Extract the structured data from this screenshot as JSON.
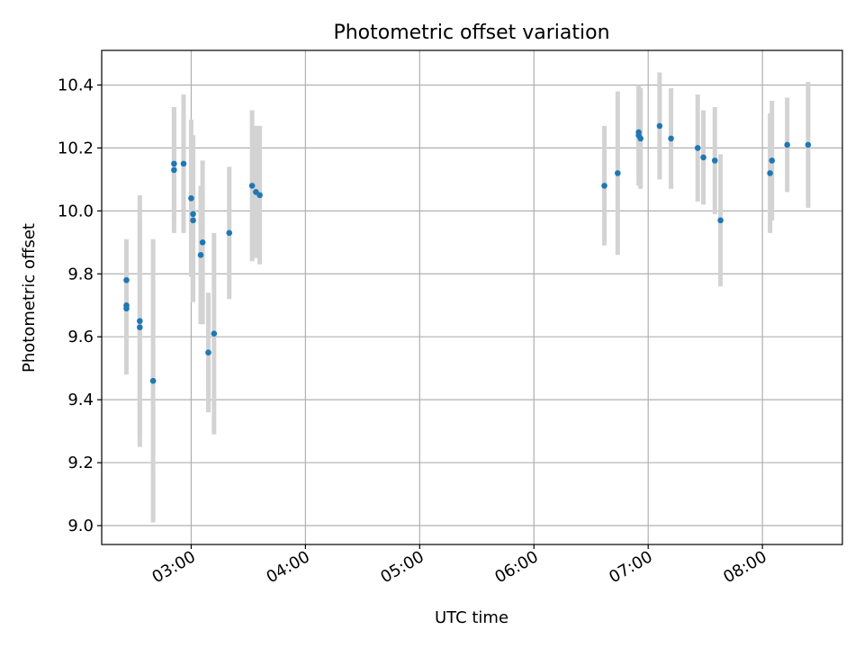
{
  "chart_data": {
    "type": "scatter",
    "title": "Photometric offset variation",
    "xlabel": "UTC time",
    "ylabel": "Photometric offset",
    "x_is_time": true,
    "xlim": [
      "02:13",
      "08:42"
    ],
    "ylim": [
      8.94,
      10.51
    ],
    "x_ticks": [
      "03:00",
      "04:00",
      "05:00",
      "06:00",
      "07:00",
      "08:00"
    ],
    "y_ticks": [
      "9.0",
      "9.2",
      "9.4",
      "9.6",
      "9.8",
      "10.0",
      "10.2",
      "10.4"
    ],
    "grid": true,
    "legend": "none",
    "point_color": "#1f77b4",
    "errorbar_color": "#d3d3d3",
    "points": [
      {
        "x": "02:26",
        "y": 9.78,
        "err": 0.13
      },
      {
        "x": "02:26",
        "y": 9.7,
        "err": 0.2
      },
      {
        "x": "02:26",
        "y": 9.69,
        "err": 0.21
      },
      {
        "x": "02:33",
        "y": 9.65,
        "err": 0.4
      },
      {
        "x": "02:33",
        "y": 9.63,
        "err": 0.35
      },
      {
        "x": "02:40",
        "y": 9.46,
        "err": 0.45
      },
      {
        "x": "02:51",
        "y": 10.13,
        "err": 0.2
      },
      {
        "x": "02:51",
        "y": 10.15,
        "err": 0.18
      },
      {
        "x": "02:56",
        "y": 10.15,
        "err": 0.22
      },
      {
        "x": "03:00",
        "y": 10.04,
        "err": 0.25
      },
      {
        "x": "03:01",
        "y": 9.99,
        "err": 0.25
      },
      {
        "x": "03:01",
        "y": 9.97,
        "err": 0.26
      },
      {
        "x": "03:05",
        "y": 9.86,
        "err": 0.22
      },
      {
        "x": "03:06",
        "y": 9.9,
        "err": 0.26
      },
      {
        "x": "03:09",
        "y": 9.55,
        "err": 0.19
      },
      {
        "x": "03:12",
        "y": 9.61,
        "err": 0.32
      },
      {
        "x": "03:20",
        "y": 9.93,
        "err": 0.21
      },
      {
        "x": "03:32",
        "y": 10.08,
        "err": 0.24
      },
      {
        "x": "03:34",
        "y": 10.06,
        "err": 0.21
      },
      {
        "x": "03:36",
        "y": 10.05,
        "err": 0.22
      },
      {
        "x": "06:37",
        "y": 10.08,
        "err": 0.19
      },
      {
        "x": "06:44",
        "y": 10.12,
        "err": 0.26
      },
      {
        "x": "06:55",
        "y": 10.25,
        "err": 0.15
      },
      {
        "x": "06:55",
        "y": 10.24,
        "err": 0.16
      },
      {
        "x": "06:56",
        "y": 10.23,
        "err": 0.16
      },
      {
        "x": "07:06",
        "y": 10.27,
        "err": 0.17
      },
      {
        "x": "07:12",
        "y": 10.23,
        "err": 0.16
      },
      {
        "x": "07:26",
        "y": 10.2,
        "err": 0.17
      },
      {
        "x": "07:29",
        "y": 10.17,
        "err": 0.15
      },
      {
        "x": "07:35",
        "y": 10.16,
        "err": 0.17
      },
      {
        "x": "07:38",
        "y": 9.97,
        "err": 0.21
      },
      {
        "x": "08:04",
        "y": 10.12,
        "err": 0.19
      },
      {
        "x": "08:05",
        "y": 10.16,
        "err": 0.19
      },
      {
        "x": "08:13",
        "y": 10.21,
        "err": 0.15
      },
      {
        "x": "08:24",
        "y": 10.21,
        "err": 0.2
      }
    ]
  }
}
